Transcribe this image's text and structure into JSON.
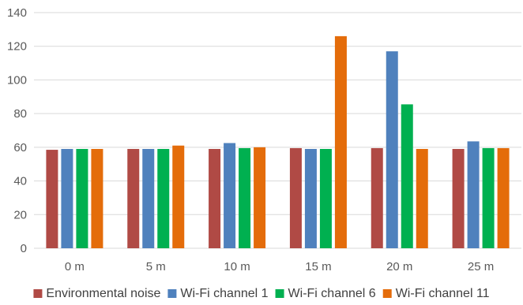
{
  "chart_data": {
    "type": "bar",
    "title": "",
    "xlabel": "",
    "ylabel": "",
    "categories": [
      "0 m",
      "5 m",
      "10 m",
      "15 m",
      "20 m",
      "25 m"
    ],
    "ylim": [
      0,
      140
    ],
    "yticks": [
      0,
      20,
      40,
      60,
      80,
      100,
      120,
      140
    ],
    "grid": true,
    "legend_position": "bottom",
    "series": [
      {
        "name": "Environmental noise",
        "color": "#B04A45",
        "values": [
          58.5,
          59,
          59,
          59.5,
          59.5,
          59
        ]
      },
      {
        "name": "Wi-Fi channel 1",
        "color": "#4F81BD",
        "values": [
          59,
          59,
          62.5,
          59,
          117,
          63.5
        ]
      },
      {
        "name": "Wi-Fi channel 6",
        "color": "#00B050",
        "values": [
          59,
          59,
          59.5,
          59,
          85.5,
          59.5
        ]
      },
      {
        "name": "Wi-Fi channel 11",
        "color": "#E46C0A",
        "values": [
          59,
          61,
          60,
          126,
          59,
          59.5
        ]
      }
    ]
  }
}
